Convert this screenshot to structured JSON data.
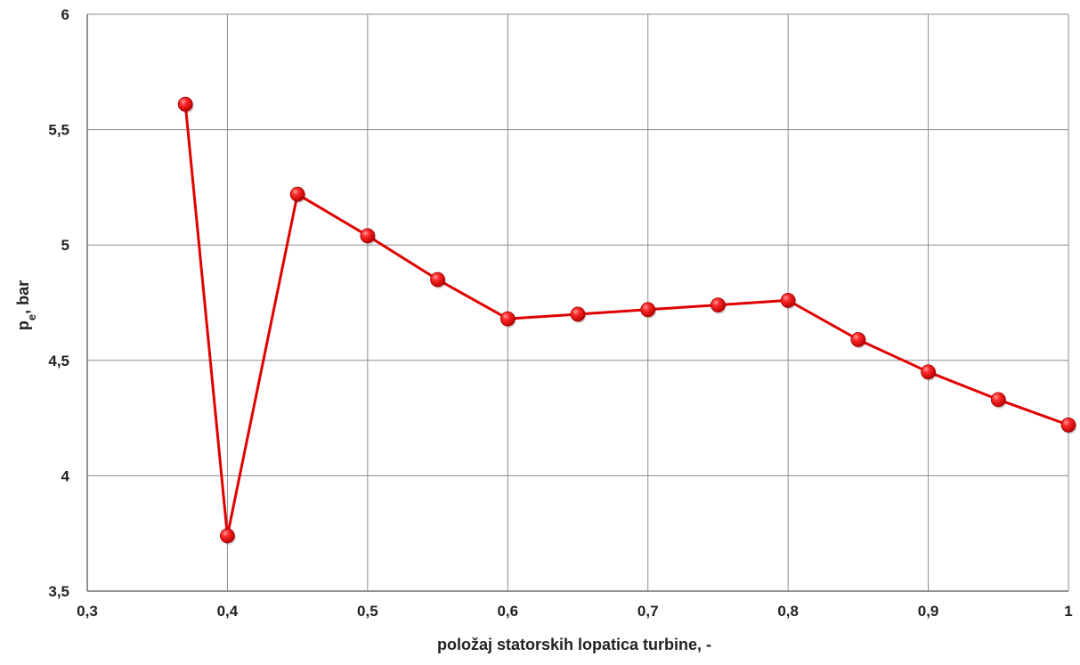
{
  "chart_data": {
    "type": "line",
    "title": "",
    "xlabel": "položaj statorskih lopatica turbine, -",
    "ylabel": {
      "main": "p",
      "sub": "e",
      "unit": ", bar"
    },
    "xlim": [
      0.3,
      1.0
    ],
    "ylim": [
      3.5,
      6.0
    ],
    "x_ticks": [
      {
        "value": 0.3,
        "label": "0,3"
      },
      {
        "value": 0.4,
        "label": "0,4"
      },
      {
        "value": 0.5,
        "label": "0,5"
      },
      {
        "value": 0.6,
        "label": "0,6"
      },
      {
        "value": 0.7,
        "label": "0,7"
      },
      {
        "value": 0.8,
        "label": "0,8"
      },
      {
        "value": 0.9,
        "label": "0,9"
      },
      {
        "value": 1.0,
        "label": "1"
      }
    ],
    "y_ticks": [
      {
        "value": 3.5,
        "label": "3,5"
      },
      {
        "value": 4.0,
        "label": "4"
      },
      {
        "value": 4.5,
        "label": "4,5"
      },
      {
        "value": 5.0,
        "label": "5"
      },
      {
        "value": 5.5,
        "label": "5,5"
      },
      {
        "value": 6.0,
        "label": "6"
      }
    ],
    "grid": true,
    "legend": "none",
    "series": [
      {
        "color": "#e00000",
        "marker_color": "#e00000",
        "x": [
          0.37,
          0.4,
          0.45,
          0.5,
          0.55,
          0.6,
          0.65,
          0.7,
          0.75,
          0.8,
          0.85,
          0.9,
          0.95,
          1.0
        ],
        "y": [
          5.61,
          3.74,
          5.22,
          5.04,
          4.85,
          4.68,
          4.7,
          4.72,
          4.74,
          4.76,
          4.59,
          4.45,
          4.33,
          4.22
        ]
      }
    ]
  }
}
